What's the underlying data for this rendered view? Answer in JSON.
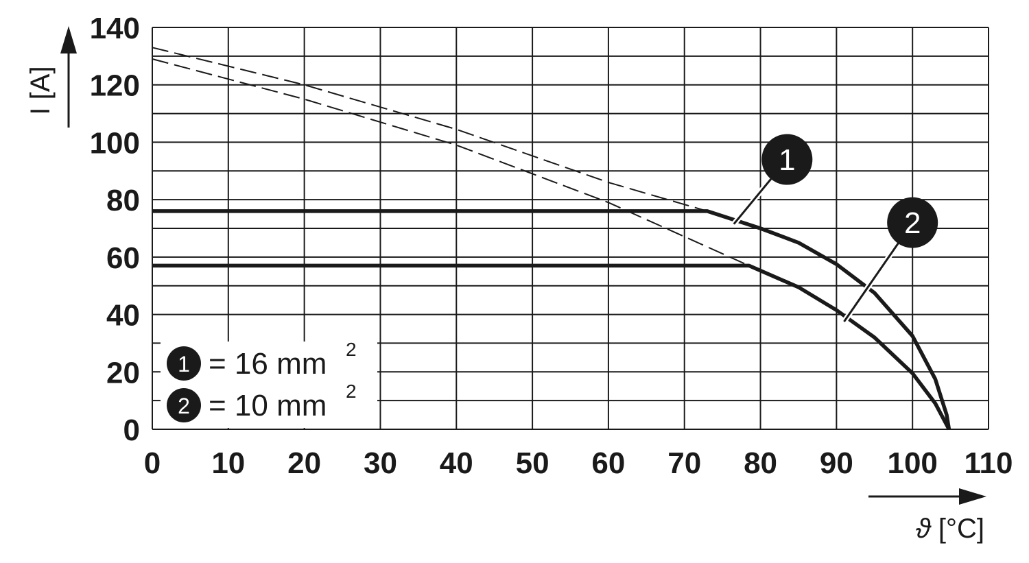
{
  "chart_data": {
    "type": "line",
    "xlabel_symbol": "ϑ",
    "xlabel_unit": "[°C]",
    "ylabel": "I [A]",
    "xlim": [
      0,
      110
    ],
    "ylim": [
      0,
      140
    ],
    "x_ticks": [
      "0",
      "10",
      "20",
      "30",
      "40",
      "50",
      "60",
      "70",
      "80",
      "90",
      "100",
      "110"
    ],
    "y_ticks": [
      "0",
      "20",
      "40",
      "60",
      "80",
      "100",
      "120",
      "140"
    ],
    "grid": true,
    "series": [
      {
        "name": "1",
        "legend_text": "= 16 mm",
        "legend_sup": "2",
        "solid": [
          [
            0,
            76
          ],
          [
            73,
            76
          ],
          [
            80,
            70
          ],
          [
            85,
            65
          ],
          [
            90,
            57.5
          ],
          [
            95,
            47.5
          ],
          [
            100,
            32.5
          ],
          [
            103,
            17.5
          ],
          [
            104.5,
            5
          ],
          [
            104.8,
            0
          ]
        ],
        "dashed": [
          [
            0,
            133
          ],
          [
            20,
            120
          ],
          [
            40,
            104.5
          ],
          [
            60,
            86
          ],
          [
            73,
            76
          ]
        ]
      },
      {
        "name": "2",
        "legend_text": "= 10 mm",
        "legend_sup": "2",
        "solid": [
          [
            0,
            57
          ],
          [
            78.5,
            57
          ],
          [
            85,
            49.5
          ],
          [
            90,
            41.5
          ],
          [
            95,
            32
          ],
          [
            100,
            19.5
          ],
          [
            103,
            9
          ],
          [
            104.8,
            0
          ]
        ],
        "dashed": [
          [
            0,
            129
          ],
          [
            20,
            115
          ],
          [
            40,
            99
          ],
          [
            60,
            79
          ],
          [
            78.5,
            57
          ]
        ]
      }
    ],
    "legend_position": "bottom-left",
    "callouts": [
      {
        "label": "1",
        "series": "1",
        "at": [
          76.5,
          71.5
        ],
        "badge_at": [
          83.5,
          94
        ]
      },
      {
        "label": "2",
        "series": "2",
        "at": [
          91,
          37.5
        ],
        "badge_at": [
          100,
          72
        ]
      }
    ]
  }
}
